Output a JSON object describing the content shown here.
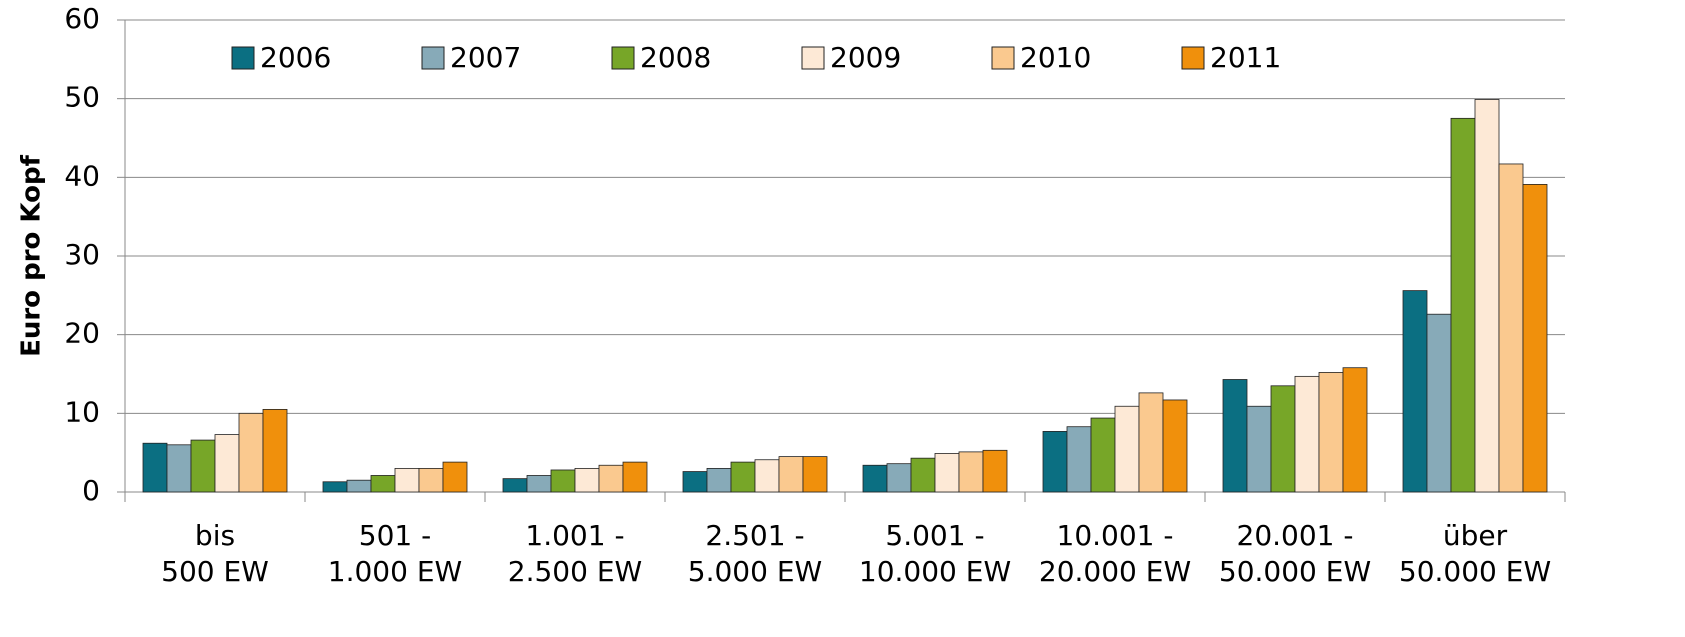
{
  "chart_data": {
    "type": "bar",
    "y_label": "Euro pro Kopf",
    "categories": [
      "bis\n500 EW",
      "501 -\n1.000 EW",
      "1.001 -\n2.500 EW",
      "2.501 -\n5.000 EW",
      "5.001 -\n10.000 EW",
      "10.001 -\n20.000 EW",
      "20.001 -\n50.000 EW",
      "über\n50.000 EW"
    ],
    "series": [
      {
        "name": "2006",
        "color": "#0b6f82",
        "values": [
          6.2,
          1.3,
          1.7,
          2.6,
          3.4,
          7.7,
          14.3,
          25.6
        ]
      },
      {
        "name": "2007",
        "color": "#87aab8",
        "values": [
          6.0,
          1.5,
          2.1,
          3.0,
          3.6,
          8.3,
          10.9,
          22.6
        ]
      },
      {
        "name": "2008",
        "color": "#77a628",
        "values": [
          6.6,
          2.1,
          2.8,
          3.8,
          4.3,
          9.4,
          13.5,
          47.5
        ]
      },
      {
        "name": "2009",
        "color": "#fde9d6",
        "values": [
          7.3,
          3.0,
          3.0,
          4.1,
          4.9,
          10.9,
          14.7,
          49.9
        ]
      },
      {
        "name": "2010",
        "color": "#fac98f",
        "values": [
          10.0,
          3.0,
          3.4,
          4.5,
          5.1,
          12.6,
          15.2,
          41.7
        ]
      },
      {
        "name": "2011",
        "color": "#f0900c",
        "values": [
          10.5,
          3.8,
          3.8,
          4.5,
          5.3,
          11.7,
          15.8,
          39.1
        ]
      }
    ],
    "ylim": [
      0,
      60
    ],
    "yticks": [
      0,
      10,
      20,
      30,
      40,
      50,
      60
    ],
    "grid": true,
    "legend": "top"
  }
}
